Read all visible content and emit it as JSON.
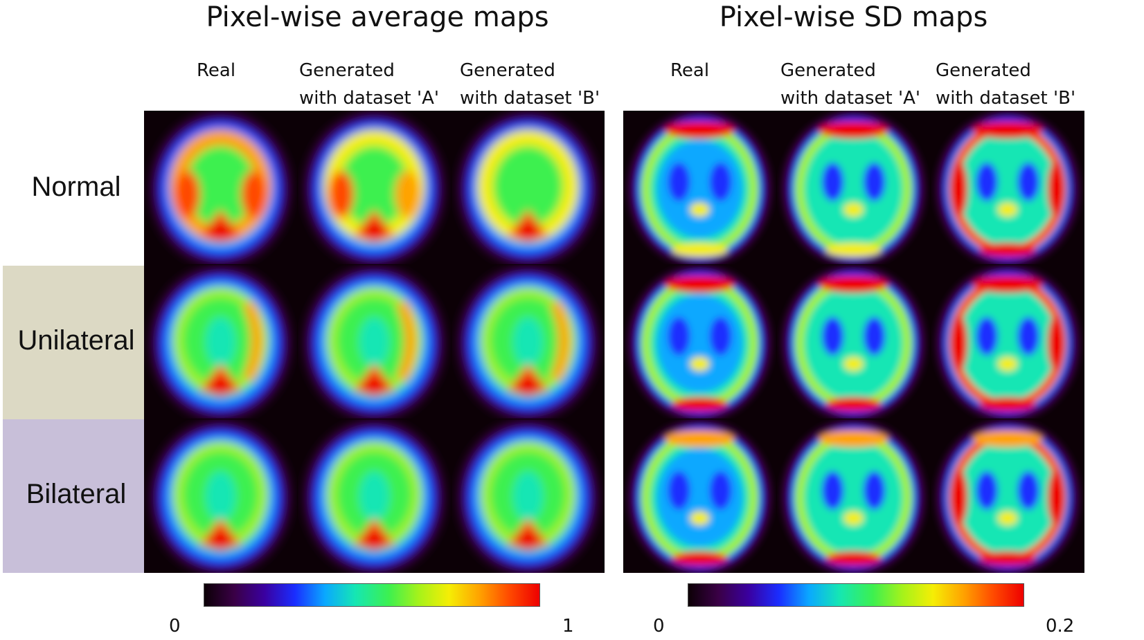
{
  "titles": {
    "left": "Pixel-wise average maps",
    "right": "Pixel-wise SD maps"
  },
  "column_headers": {
    "left": [
      "Real",
      "Generated\nwith dataset 'A'",
      "Generated\nwith dataset 'B'"
    ],
    "right": [
      "Real",
      "Generated\nwith dataset 'A'",
      "Generated\nwith dataset 'B'"
    ]
  },
  "row_labels": [
    "Normal",
    "Unilateral",
    "Bilateral"
  ],
  "row_colors": {
    "unilateral": "#dcd9c4",
    "bilateral": "#c8bfd9"
  },
  "colorbars": {
    "left": {
      "min_label": "0",
      "max_label": "1"
    },
    "right": {
      "min_label": "0",
      "max_label": "0.2"
    }
  },
  "colormap": [
    "#0c0006",
    "#3a0046",
    "#3a00a0",
    "#1a2dff",
    "#0aa8ff",
    "#15e6b4",
    "#3cf050",
    "#a6f21a",
    "#f5ee05",
    "#ffa300",
    "#ff4a00",
    "#ee0000"
  ]
}
